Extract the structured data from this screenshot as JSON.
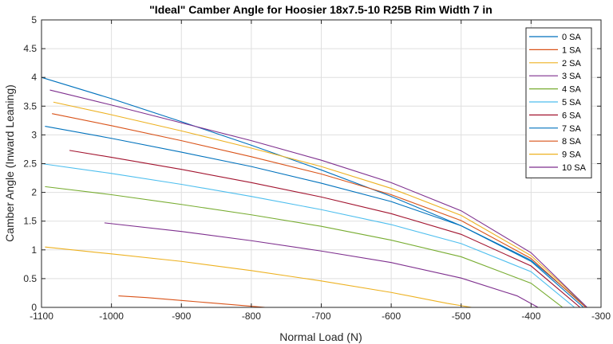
{
  "chart_data": {
    "type": "line",
    "title": "\"Ideal\" Camber Angle for Hoosier 18x7.5-10 R25B Rim Width 7 in",
    "xlabel": "Normal Load (N)",
    "ylabel": "Camber Angle (Inward Leaning)",
    "xlim": [
      -1100,
      -300
    ],
    "ylim": [
      0,
      5
    ],
    "xticks": [
      "-1100",
      "-1000",
      "-900",
      "-800",
      "-700",
      "-600",
      "-500",
      "-400",
      "-300"
    ],
    "yticks": [
      "0",
      "0.5",
      "1",
      "1.5",
      "2",
      "2.5",
      "3",
      "3.5",
      "4",
      "4.5",
      "5"
    ],
    "grid": true,
    "legend_position": "top-right",
    "series": [
      {
        "name": "0 SA",
        "color": "#0072BD",
        "x": [
          -1100,
          -1000,
          -900,
          -800,
          -700,
          -600,
          -500,
          -400,
          -320
        ],
        "y": [
          4.0,
          3.63,
          3.23,
          2.82,
          2.39,
          1.93,
          1.42,
          0.82,
          0.0
        ]
      },
      {
        "name": "1 SA",
        "color": "#D95319",
        "x": [
          -990,
          -950,
          -900,
          -850,
          -800,
          -780
        ],
        "y": [
          0.2,
          0.17,
          0.12,
          0.07,
          0.02,
          0.0
        ]
      },
      {
        "name": "2 SA",
        "color": "#EDB120",
        "x": [
          -1095,
          -1000,
          -900,
          -800,
          -700,
          -600,
          -520,
          -485
        ],
        "y": [
          1.05,
          0.93,
          0.8,
          0.64,
          0.46,
          0.26,
          0.07,
          0.0
        ]
      },
      {
        "name": "3 SA",
        "color": "#7E2F8E",
        "x": [
          -1010,
          -900,
          -800,
          -700,
          -600,
          -500,
          -420,
          -390
        ],
        "y": [
          1.47,
          1.32,
          1.16,
          0.98,
          0.78,
          0.51,
          0.2,
          0.0
        ]
      },
      {
        "name": "4 SA",
        "color": "#77AC30",
        "x": [
          -1095,
          -1000,
          -900,
          -800,
          -700,
          -600,
          -500,
          -400,
          -355
        ],
        "y": [
          2.1,
          1.96,
          1.79,
          1.61,
          1.41,
          1.17,
          0.88,
          0.42,
          0.0
        ]
      },
      {
        "name": "5 SA",
        "color": "#4DBEEE",
        "x": [
          -1100,
          -1000,
          -900,
          -800,
          -700,
          -600,
          -500,
          -400,
          -338
        ],
        "y": [
          2.5,
          2.33,
          2.14,
          1.93,
          1.7,
          1.44,
          1.11,
          0.62,
          0.0
        ]
      },
      {
        "name": "6 SA",
        "color": "#A2142F",
        "x": [
          -1060,
          -1000,
          -900,
          -800,
          -700,
          -600,
          -500,
          -400,
          -330
        ],
        "y": [
          2.73,
          2.61,
          2.4,
          2.17,
          1.92,
          1.63,
          1.27,
          0.72,
          0.0
        ]
      },
      {
        "name": "7 SA",
        "color": "#0072BD",
        "x": [
          -1095,
          -1000,
          -900,
          -800,
          -700,
          -600,
          -500,
          -400,
          -325
        ],
        "y": [
          3.15,
          2.94,
          2.7,
          2.45,
          2.16,
          1.84,
          1.42,
          0.8,
          0.0
        ]
      },
      {
        "name": "8 SA",
        "color": "#D95319",
        "x": [
          -1085,
          -1000,
          -900,
          -800,
          -700,
          -600,
          -500,
          -400,
          -322
        ],
        "y": [
          3.37,
          3.16,
          2.9,
          2.62,
          2.32,
          1.96,
          1.51,
          0.85,
          0.0
        ]
      },
      {
        "name": "9 SA",
        "color": "#EDB120",
        "x": [
          -1083,
          -1000,
          -900,
          -800,
          -700,
          -600,
          -500,
          -400,
          -320
        ],
        "y": [
          3.57,
          3.35,
          3.07,
          2.77,
          2.45,
          2.07,
          1.6,
          0.9,
          0.0
        ]
      },
      {
        "name": "10 SA",
        "color": "#7E2F8E",
        "x": [
          -1088,
          -1000,
          -900,
          -800,
          -700,
          -600,
          -500,
          -400,
          -320
        ],
        "y": [
          3.78,
          3.52,
          3.21,
          2.9,
          2.56,
          2.17,
          1.68,
          0.95,
          0.0
        ]
      }
    ]
  }
}
